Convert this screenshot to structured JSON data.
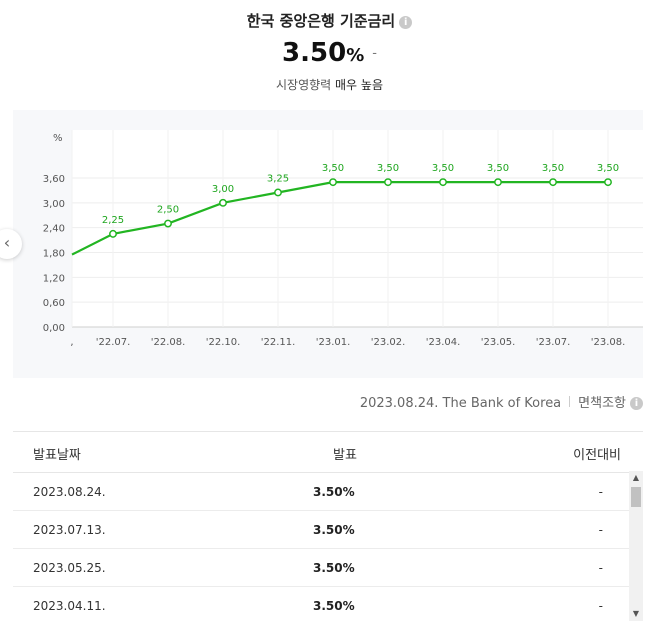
{
  "title": "한국 중앙은행 기준금리",
  "rate": {
    "value": "3.50",
    "unit": "%",
    "change": "-"
  },
  "impact": {
    "label": "시장영향력",
    "level": "매우 높음"
  },
  "source": {
    "text": "2023.08.24. The Bank of Korea",
    "disclaimer": "면책조항"
  },
  "colors": {
    "line": "#22b522",
    "label": "#1fa61f"
  },
  "chart_data": {
    "type": "line",
    "unit_label": "%",
    "categories": [
      ",",
      "'22.07.",
      "'22.08.",
      "'22.10.",
      "'22.11.",
      "'23.01.",
      "'23.02.",
      "'23.04.",
      "'23.05.",
      "'23.07.",
      "'23.08."
    ],
    "values": [
      1.75,
      2.25,
      2.5,
      3.0,
      3.25,
      3.5,
      3.5,
      3.5,
      3.5,
      3.5,
      3.5
    ],
    "point_labels": [
      "",
      "2.25",
      "2.50",
      "3.00",
      "3.25",
      "3.50",
      "3.50",
      "3.50",
      "3.50",
      "3.50",
      "3.50"
    ],
    "yticks": [
      "0.00",
      "0.60",
      "1.20",
      "1.80",
      "2.40",
      "3.00",
      "3.60"
    ],
    "ylim": [
      0,
      3.6
    ],
    "grid": true
  },
  "table": {
    "headers": [
      "발표날짜",
      "발표",
      "이전대비"
    ],
    "rows": [
      {
        "date": "2023.08.24.",
        "value": "3.50%",
        "change": "-"
      },
      {
        "date": "2023.07.13.",
        "value": "3.50%",
        "change": "-"
      },
      {
        "date": "2023.05.25.",
        "value": "3.50%",
        "change": "-"
      },
      {
        "date": "2023.04.11.",
        "value": "3.50%",
        "change": "-"
      }
    ]
  }
}
